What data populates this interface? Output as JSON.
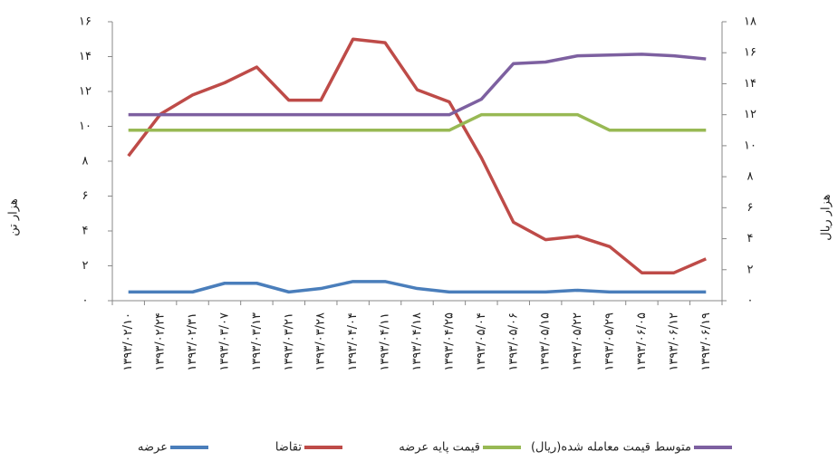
{
  "chart_data": {
    "type": "line",
    "y_label": "هزار تن",
    "y2_label": "هزار ریال",
    "categories": [
      "۱۳۹۳/۰۲/۱۰",
      "۱۳۹۳/۰۲/۲۴",
      "۱۳۹۳/۰۲/۳۱",
      "۱۳۹۳/۰۳/۰۷",
      "۱۳۹۳/۰۳/۱۳",
      "۱۳۹۳/۰۳/۲۱",
      "۱۳۹۳/۰۳/۲۸",
      "۱۳۹۳/۰۴/۰۴",
      "۱۳۹۳/۰۴/۱۱",
      "۱۳۹۳/۰۴/۱۸",
      "۱۳۹۳/۰۴/۲۵",
      "۱۳۹۳/۰۵/۰۴",
      "۱۳۹۳/۰۵/۰۶",
      "۱۳۹۳/۰۵/۱۵",
      "۱۳۹۳/۰۵/۲۲",
      "۱۳۹۳/۰۵/۲۹",
      "۱۳۹۳/۰۶/۰۵",
      "۱۳۹۳/۰۶/۱۲",
      "۱۳۹۳/۰۶/۱۹"
    ],
    "series": [
      {
        "name": "عرضه",
        "color": "#4a7ebb",
        "values": [
          0.5,
          0.5,
          0.5,
          1,
          1,
          0.5,
          0.7,
          1.1,
          1.1,
          0.7,
          0.5,
          0.5,
          0.5,
          0.5,
          0.6,
          0.5,
          0.5,
          0.5,
          0.5
        ]
      },
      {
        "name": "تقاضا",
        "color": "#be4b48",
        "values": [
          8.3,
          10.7,
          11.8,
          12.5,
          13.4,
          11.5,
          11.5,
          15,
          14.8,
          12.1,
          11.4,
          8.2,
          4.5,
          3.5,
          3.7,
          3.1,
          1.6,
          1.6,
          2.4
        ]
      },
      {
        "name": "قیمت پایه عرضه",
        "color": "#98b954",
        "axis": "y2",
        "values": [
          11,
          11,
          11,
          11,
          11,
          11,
          11,
          11,
          11,
          11,
          11,
          12,
          12,
          12,
          12,
          11,
          11,
          11,
          11
        ]
      },
      {
        "name": "متوسط قیمت معامله شده(ریال)",
        "color": "#7d60a0",
        "axis": "y2",
        "values": [
          12,
          12,
          12,
          12,
          12,
          12,
          12,
          12,
          12,
          12,
          12,
          13,
          15.3,
          15.4,
          15.8,
          15.85,
          15.9,
          15.8,
          15.6
        ]
      }
    ],
    "ylim": [
      0,
      16
    ],
    "yticks": [
      {
        "value": 0,
        "label": "۰"
      },
      {
        "value": 2,
        "label": "۲"
      },
      {
        "value": 4,
        "label": "۴"
      },
      {
        "value": 6,
        "label": "۶"
      },
      {
        "value": 8,
        "label": "۸"
      },
      {
        "value": 10,
        "label": "۱۰"
      },
      {
        "value": 12,
        "label": "۱۲"
      },
      {
        "value": 14,
        "label": "۱۴"
      },
      {
        "value": 16,
        "label": "۱۶"
      }
    ],
    "y2lim": [
      0,
      18
    ],
    "y2ticks": [
      {
        "value": 0,
        "label": "۰"
      },
      {
        "value": 2,
        "label": "۲"
      },
      {
        "value": 4,
        "label": "۴"
      },
      {
        "value": 6,
        "label": "۶"
      },
      {
        "value": 8,
        "label": "۸"
      },
      {
        "value": 10,
        "label": "۱۰"
      },
      {
        "value": 12,
        "label": "۱۲"
      },
      {
        "value": 14,
        "label": "۱۴"
      },
      {
        "value": 16,
        "label": "۱۶"
      },
      {
        "value": 18,
        "label": "۱۸"
      }
    ],
    "legend": "bottom"
  }
}
